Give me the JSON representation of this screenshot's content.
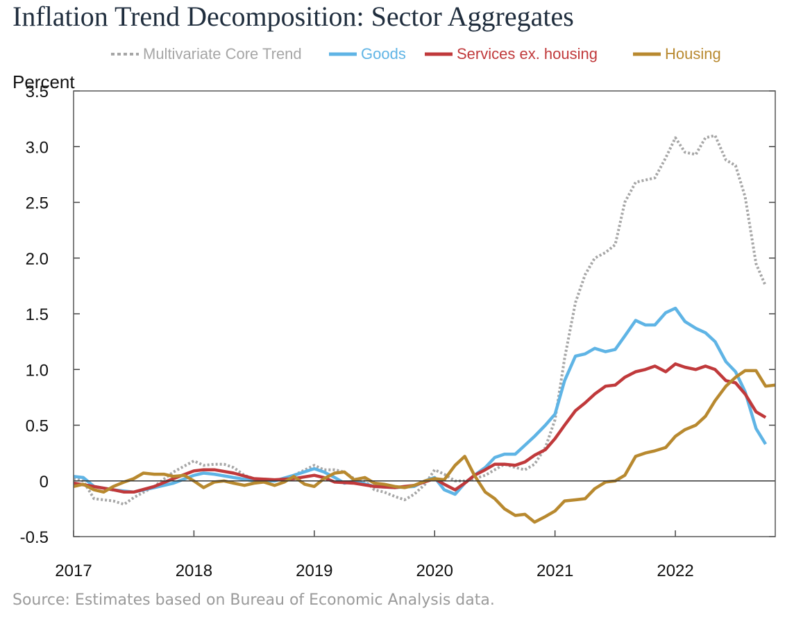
{
  "title": "Inflation Trend Decomposition: Sector Aggregates",
  "source": "Source: Estimates based on Bureau of Economic Analysis data.",
  "chart_data": {
    "type": "line",
    "ylabel": "Percent",
    "xlabel": "",
    "ylim": [
      -0.5,
      3.5
    ],
    "yticks": [
      {
        "value": 3.5,
        "label": "3.5"
      },
      {
        "value": 3.0,
        "label": "3.0"
      },
      {
        "value": 2.5,
        "label": "2.5"
      },
      {
        "value": 2.0,
        "label": "2.0"
      },
      {
        "value": 1.5,
        "label": "1.5"
      },
      {
        "value": 1.0,
        "label": "1.0"
      },
      {
        "value": 0.5,
        "label": "0.5"
      },
      {
        "value": 0,
        "label": "0"
      },
      {
        "value": -0.5,
        "label": "-0.5"
      }
    ],
    "xlim": [
      2017.0,
      2022.83
    ],
    "xticks": [
      {
        "value": 2017,
        "label": "2017"
      },
      {
        "value": 2018,
        "label": "2018"
      },
      {
        "value": 2019,
        "label": "2019"
      },
      {
        "value": 2020,
        "label": "2020"
      },
      {
        "value": 2021,
        "label": "2021"
      },
      {
        "value": 2022,
        "label": "2022"
      }
    ],
    "grid": false,
    "zero_line": true,
    "legend_position": "top",
    "series": [
      {
        "name": "Multivariate Core Trend",
        "color": "#a6a6a6",
        "style": "dotted",
        "points": [
          [
            2017.0,
            0.02
          ],
          [
            2017.08,
            0.0
          ],
          [
            2017.17,
            -0.16
          ],
          [
            2017.33,
            -0.18
          ],
          [
            2017.42,
            -0.21
          ],
          [
            2017.5,
            -0.15
          ],
          [
            2017.67,
            -0.05
          ],
          [
            2017.83,
            0.08
          ],
          [
            2018.0,
            0.18
          ],
          [
            2018.08,
            0.14
          ],
          [
            2018.17,
            0.15
          ],
          [
            2018.25,
            0.15
          ],
          [
            2018.33,
            0.12
          ],
          [
            2018.42,
            0.05
          ],
          [
            2018.5,
            0.02
          ],
          [
            2018.67,
            0.0
          ],
          [
            2018.83,
            0.05
          ],
          [
            2019.0,
            0.14
          ],
          [
            2019.08,
            0.1
          ],
          [
            2019.17,
            0.1
          ],
          [
            2019.25,
            0.08
          ],
          [
            2019.33,
            0.02
          ],
          [
            2019.42,
            0.0
          ],
          [
            2019.5,
            -0.08
          ],
          [
            2019.58,
            -0.1
          ],
          [
            2019.67,
            -0.14
          ],
          [
            2019.75,
            -0.17
          ],
          [
            2019.83,
            -0.12
          ],
          [
            2019.92,
            -0.03
          ],
          [
            2020.0,
            0.1
          ],
          [
            2020.08,
            0.06
          ],
          [
            2020.17,
            0.0
          ],
          [
            2020.25,
            0.0
          ],
          [
            2020.33,
            0.02
          ],
          [
            2020.42,
            0.05
          ],
          [
            2020.5,
            0.1
          ],
          [
            2020.58,
            0.15
          ],
          [
            2020.67,
            0.12
          ],
          [
            2020.75,
            0.1
          ],
          [
            2020.83,
            0.15
          ],
          [
            2020.92,
            0.3
          ],
          [
            2021.0,
            0.55
          ],
          [
            2021.08,
            1.1
          ],
          [
            2021.17,
            1.6
          ],
          [
            2021.25,
            1.85
          ],
          [
            2021.33,
            2.0
          ],
          [
            2021.42,
            2.05
          ],
          [
            2021.5,
            2.12
          ],
          [
            2021.58,
            2.5
          ],
          [
            2021.67,
            2.68
          ],
          [
            2021.75,
            2.7
          ],
          [
            2021.83,
            2.72
          ],
          [
            2021.92,
            2.9
          ],
          [
            2022.0,
            3.08
          ],
          [
            2022.08,
            2.95
          ],
          [
            2022.17,
            2.93
          ],
          [
            2022.25,
            3.08
          ],
          [
            2022.33,
            3.1
          ],
          [
            2022.42,
            2.88
          ],
          [
            2022.5,
            2.83
          ],
          [
            2022.58,
            2.55
          ],
          [
            2022.67,
            1.95
          ],
          [
            2022.75,
            1.75
          ]
        ]
      },
      {
        "name": "Goods",
        "color": "#5fb4e5",
        "style": "solid",
        "points": [
          [
            2017.0,
            0.04
          ],
          [
            2017.08,
            0.03
          ],
          [
            2017.17,
            -0.05
          ],
          [
            2017.33,
            -0.08
          ],
          [
            2017.5,
            -0.1
          ],
          [
            2017.67,
            -0.06
          ],
          [
            2017.83,
            -0.02
          ],
          [
            2018.0,
            0.05
          ],
          [
            2018.08,
            0.07
          ],
          [
            2018.17,
            0.06
          ],
          [
            2018.33,
            0.03
          ],
          [
            2018.5,
            0.0
          ],
          [
            2018.67,
            0.0
          ],
          [
            2018.83,
            0.05
          ],
          [
            2019.0,
            0.11
          ],
          [
            2019.08,
            0.08
          ],
          [
            2019.17,
            0.03
          ],
          [
            2019.25,
            -0.02
          ],
          [
            2019.33,
            0.0
          ],
          [
            2019.5,
            -0.05
          ],
          [
            2019.67,
            -0.06
          ],
          [
            2019.83,
            -0.05
          ],
          [
            2019.92,
            0.0
          ],
          [
            2020.0,
            0.03
          ],
          [
            2020.08,
            -0.08
          ],
          [
            2020.17,
            -0.12
          ],
          [
            2020.25,
            -0.02
          ],
          [
            2020.33,
            0.05
          ],
          [
            2020.42,
            0.12
          ],
          [
            2020.5,
            0.21
          ],
          [
            2020.58,
            0.24
          ],
          [
            2020.67,
            0.24
          ],
          [
            2020.75,
            0.32
          ],
          [
            2020.83,
            0.4
          ],
          [
            2020.92,
            0.5
          ],
          [
            2021.0,
            0.6
          ],
          [
            2021.08,
            0.9
          ],
          [
            2021.17,
            1.12
          ],
          [
            2021.25,
            1.14
          ],
          [
            2021.33,
            1.19
          ],
          [
            2021.42,
            1.16
          ],
          [
            2021.5,
            1.18
          ],
          [
            2021.58,
            1.3
          ],
          [
            2021.67,
            1.44
          ],
          [
            2021.75,
            1.4
          ],
          [
            2021.83,
            1.4
          ],
          [
            2021.92,
            1.51
          ],
          [
            2022.0,
            1.55
          ],
          [
            2022.08,
            1.43
          ],
          [
            2022.17,
            1.37
          ],
          [
            2022.25,
            1.33
          ],
          [
            2022.33,
            1.25
          ],
          [
            2022.42,
            1.07
          ],
          [
            2022.5,
            0.98
          ],
          [
            2022.58,
            0.8
          ],
          [
            2022.67,
            0.47
          ],
          [
            2022.75,
            0.33
          ]
        ]
      },
      {
        "name": "Services ex. housing",
        "color": "#c0393b",
        "style": "solid",
        "points": [
          [
            2017.0,
            -0.02
          ],
          [
            2017.17,
            -0.05
          ],
          [
            2017.33,
            -0.08
          ],
          [
            2017.42,
            -0.1
          ],
          [
            2017.5,
            -0.1
          ],
          [
            2017.67,
            -0.05
          ],
          [
            2017.83,
            0.02
          ],
          [
            2018.0,
            0.09
          ],
          [
            2018.08,
            0.1
          ],
          [
            2018.17,
            0.1
          ],
          [
            2018.33,
            0.07
          ],
          [
            2018.5,
            0.02
          ],
          [
            2018.67,
            0.01
          ],
          [
            2018.83,
            0.02
          ],
          [
            2019.0,
            0.05
          ],
          [
            2019.08,
            0.03
          ],
          [
            2019.17,
            -0.01
          ],
          [
            2019.33,
            -0.02
          ],
          [
            2019.5,
            -0.05
          ],
          [
            2019.67,
            -0.06
          ],
          [
            2019.83,
            -0.04
          ],
          [
            2020.0,
            0.02
          ],
          [
            2020.08,
            -0.03
          ],
          [
            2020.17,
            -0.08
          ],
          [
            2020.25,
            -0.02
          ],
          [
            2020.33,
            0.05
          ],
          [
            2020.42,
            0.1
          ],
          [
            2020.5,
            0.15
          ],
          [
            2020.58,
            0.15
          ],
          [
            2020.67,
            0.14
          ],
          [
            2020.75,
            0.17
          ],
          [
            2020.83,
            0.23
          ],
          [
            2020.92,
            0.28
          ],
          [
            2021.0,
            0.38
          ],
          [
            2021.08,
            0.5
          ],
          [
            2021.17,
            0.63
          ],
          [
            2021.25,
            0.7
          ],
          [
            2021.33,
            0.78
          ],
          [
            2021.42,
            0.85
          ],
          [
            2021.5,
            0.86
          ],
          [
            2021.58,
            0.93
          ],
          [
            2021.67,
            0.98
          ],
          [
            2021.75,
            1.0
          ],
          [
            2021.83,
            1.03
          ],
          [
            2021.92,
            0.98
          ],
          [
            2022.0,
            1.05
          ],
          [
            2022.08,
            1.02
          ],
          [
            2022.17,
            1.0
          ],
          [
            2022.25,
            1.03
          ],
          [
            2022.33,
            1.0
          ],
          [
            2022.42,
            0.9
          ],
          [
            2022.5,
            0.88
          ],
          [
            2022.58,
            0.78
          ],
          [
            2022.67,
            0.62
          ],
          [
            2022.75,
            0.57
          ]
        ]
      },
      {
        "name": "Housing",
        "color": "#b8892f",
        "style": "solid",
        "points": [
          [
            2017.0,
            -0.05
          ],
          [
            2017.08,
            -0.03
          ],
          [
            2017.17,
            -0.08
          ],
          [
            2017.25,
            -0.1
          ],
          [
            2017.33,
            -0.05
          ],
          [
            2017.42,
            -0.01
          ],
          [
            2017.5,
            0.02
          ],
          [
            2017.58,
            0.07
          ],
          [
            2017.67,
            0.06
          ],
          [
            2017.75,
            0.06
          ],
          [
            2017.83,
            0.04
          ],
          [
            2017.92,
            0.05
          ],
          [
            2018.0,
            0.0
          ],
          [
            2018.08,
            -0.06
          ],
          [
            2018.17,
            -0.01
          ],
          [
            2018.25,
            0.0
          ],
          [
            2018.33,
            -0.02
          ],
          [
            2018.42,
            -0.04
          ],
          [
            2018.5,
            -0.02
          ],
          [
            2018.58,
            -0.01
          ],
          [
            2018.67,
            -0.04
          ],
          [
            2018.75,
            -0.01
          ],
          [
            2018.83,
            0.04
          ],
          [
            2018.92,
            -0.03
          ],
          [
            2019.0,
            -0.05
          ],
          [
            2019.08,
            0.02
          ],
          [
            2019.17,
            0.07
          ],
          [
            2019.25,
            0.08
          ],
          [
            2019.33,
            0.01
          ],
          [
            2019.42,
            0.03
          ],
          [
            2019.5,
            -0.02
          ],
          [
            2019.58,
            -0.03
          ],
          [
            2019.67,
            -0.05
          ],
          [
            2019.75,
            -0.06
          ],
          [
            2019.83,
            -0.04
          ],
          [
            2019.92,
            0.0
          ],
          [
            2020.0,
            0.02
          ],
          [
            2020.08,
            0.01
          ],
          [
            2020.17,
            0.14
          ],
          [
            2020.25,
            0.22
          ],
          [
            2020.33,
            0.05
          ],
          [
            2020.42,
            -0.1
          ],
          [
            2020.5,
            -0.16
          ],
          [
            2020.58,
            -0.25
          ],
          [
            2020.67,
            -0.31
          ],
          [
            2020.75,
            -0.3
          ],
          [
            2020.83,
            -0.37
          ],
          [
            2020.92,
            -0.32
          ],
          [
            2021.0,
            -0.27
          ],
          [
            2021.08,
            -0.18
          ],
          [
            2021.17,
            -0.17
          ],
          [
            2021.25,
            -0.16
          ],
          [
            2021.33,
            -0.07
          ],
          [
            2021.42,
            -0.01
          ],
          [
            2021.5,
            0.0
          ],
          [
            2021.58,
            0.05
          ],
          [
            2021.67,
            0.22
          ],
          [
            2021.75,
            0.25
          ],
          [
            2021.83,
            0.27
          ],
          [
            2021.92,
            0.3
          ],
          [
            2022.0,
            0.4
          ],
          [
            2022.08,
            0.46
          ],
          [
            2022.17,
            0.5
          ],
          [
            2022.25,
            0.58
          ],
          [
            2022.33,
            0.72
          ],
          [
            2022.42,
            0.85
          ],
          [
            2022.5,
            0.93
          ],
          [
            2022.58,
            0.99
          ],
          [
            2022.67,
            0.99
          ],
          [
            2022.75,
            0.85
          ],
          [
            2022.83,
            0.86
          ]
        ]
      }
    ]
  }
}
